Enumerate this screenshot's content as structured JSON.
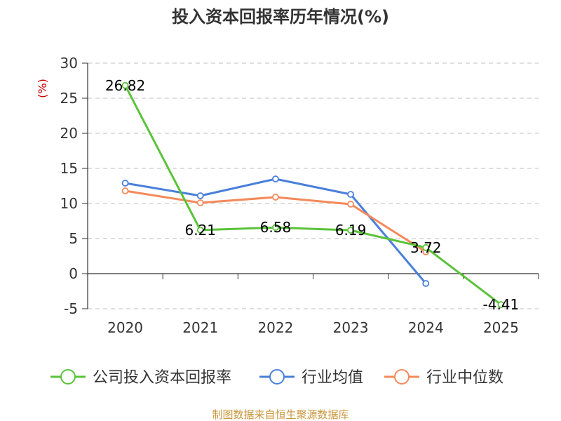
{
  "chart_data": {
    "type": "line",
    "title": "投入资本回报率历年情况(%)",
    "ylabel": "(%)",
    "xlabel": "",
    "ylim": [
      -5,
      30
    ],
    "yticks": [
      30,
      25,
      20,
      15,
      10,
      5,
      0,
      -5
    ],
    "categories": [
      "2020",
      "2021",
      "2022",
      "2023",
      "2024",
      "2025"
    ],
    "grid": true,
    "legend_position": "bottom",
    "series": [
      {
        "name": "公司投入资本回报率",
        "color": "#5ac33a",
        "values": [
          26.82,
          6.21,
          6.58,
          6.19,
          3.72,
          -4.41
        ],
        "labels": [
          "26.82",
          "6.21",
          "6.58",
          "6.19",
          "3.72",
          "-4.41"
        ]
      },
      {
        "name": "行业均值",
        "color": "#4a7fdb",
        "values": [
          12.9,
          11.1,
          13.5,
          11.3,
          -1.4,
          null
        ]
      },
      {
        "name": "行业中位数",
        "color": "#f5895a",
        "values": [
          11.8,
          10.1,
          10.9,
          9.9,
          3.1,
          null
        ]
      }
    ]
  },
  "source": "制图数据来自恒生聚源数据库"
}
